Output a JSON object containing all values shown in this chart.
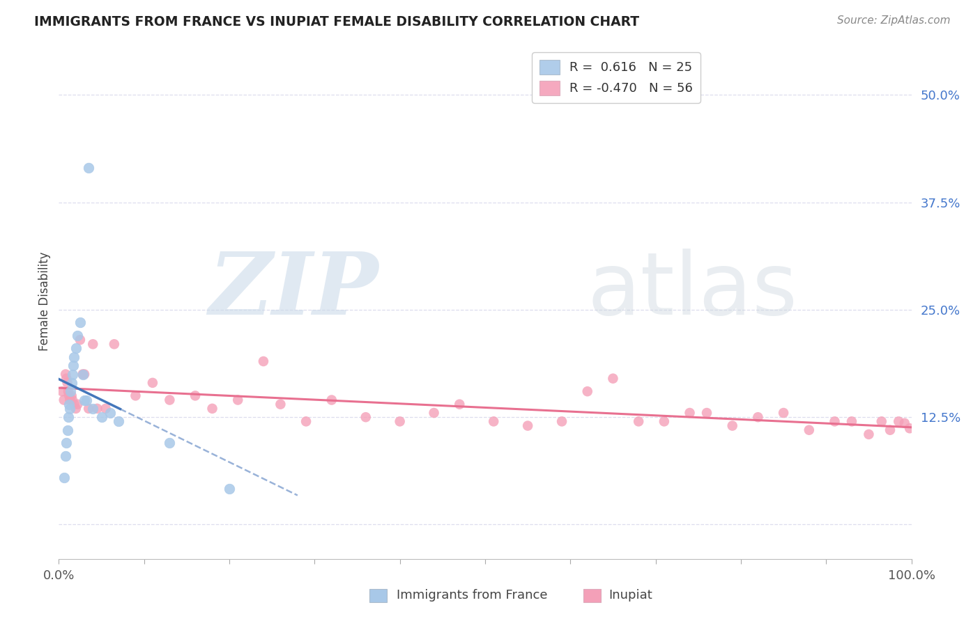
{
  "title": "IMMIGRANTS FROM FRANCE VS INUPIAT FEMALE DISABILITY CORRELATION CHART",
  "source": "Source: ZipAtlas.com",
  "ylabel": "Female Disability",
  "ytick_vals": [
    0.0,
    0.125,
    0.25,
    0.375,
    0.5
  ],
  "ytick_labels": [
    "",
    "12.5%",
    "25.0%",
    "37.5%",
    "50.0%"
  ],
  "xtick_vals": [
    0.0,
    0.1,
    0.2,
    0.3,
    0.4,
    0.5,
    0.6,
    0.7,
    0.8,
    0.9,
    1.0
  ],
  "xlim": [
    0.0,
    1.0
  ],
  "ylim": [
    -0.04,
    0.56
  ],
  "legend_line1": "R =  0.616   N = 25",
  "legend_line2": "R = -0.470   N = 56",
  "blue_scatter_color": "#A8C8E8",
  "pink_scatter_color": "#F4A0B8",
  "blue_line_color": "#4477BB",
  "blue_dash_color": "#7799CC",
  "pink_line_color": "#E87090",
  "grid_color": "#DDDDEE",
  "background_color": "#FFFFFF",
  "title_color": "#222222",
  "source_color": "#888888",
  "ylabel_color": "#444444",
  "ytick_color": "#4477CC",
  "xtick_color": "#555555",
  "legend_text_color": "#333333",
  "blue_scatter_x": [
    0.006,
    0.008,
    0.009,
    0.01,
    0.011,
    0.012,
    0.013,
    0.014,
    0.015,
    0.016,
    0.017,
    0.018,
    0.02,
    0.022,
    0.025,
    0.028,
    0.03,
    0.032,
    0.035,
    0.04,
    0.05,
    0.06,
    0.07,
    0.13,
    0.2
  ],
  "blue_scatter_y": [
    0.055,
    0.08,
    0.095,
    0.11,
    0.125,
    0.14,
    0.135,
    0.155,
    0.165,
    0.175,
    0.185,
    0.195,
    0.205,
    0.22,
    0.235,
    0.175,
    0.145,
    0.145,
    0.415,
    0.135,
    0.125,
    0.13,
    0.12,
    0.095,
    0.042
  ],
  "pink_scatter_x": [
    0.004,
    0.006,
    0.008,
    0.009,
    0.01,
    0.011,
    0.012,
    0.013,
    0.015,
    0.016,
    0.018,
    0.02,
    0.022,
    0.025,
    0.028,
    0.03,
    0.035,
    0.04,
    0.045,
    0.055,
    0.065,
    0.09,
    0.11,
    0.13,
    0.16,
    0.18,
    0.21,
    0.24,
    0.26,
    0.29,
    0.32,
    0.36,
    0.4,
    0.44,
    0.47,
    0.51,
    0.55,
    0.59,
    0.62,
    0.65,
    0.68,
    0.71,
    0.74,
    0.76,
    0.79,
    0.82,
    0.85,
    0.88,
    0.91,
    0.93,
    0.95,
    0.965,
    0.975,
    0.985,
    0.992,
    0.998
  ],
  "pink_scatter_y": [
    0.155,
    0.145,
    0.175,
    0.17,
    0.165,
    0.155,
    0.15,
    0.145,
    0.15,
    0.145,
    0.14,
    0.135,
    0.14,
    0.215,
    0.175,
    0.175,
    0.135,
    0.21,
    0.135,
    0.135,
    0.21,
    0.15,
    0.165,
    0.145,
    0.15,
    0.135,
    0.145,
    0.19,
    0.14,
    0.12,
    0.145,
    0.125,
    0.12,
    0.13,
    0.14,
    0.12,
    0.115,
    0.12,
    0.155,
    0.17,
    0.12,
    0.12,
    0.13,
    0.13,
    0.115,
    0.125,
    0.13,
    0.11,
    0.12,
    0.12,
    0.105,
    0.12,
    0.11,
    0.12,
    0.118,
    0.112
  ]
}
